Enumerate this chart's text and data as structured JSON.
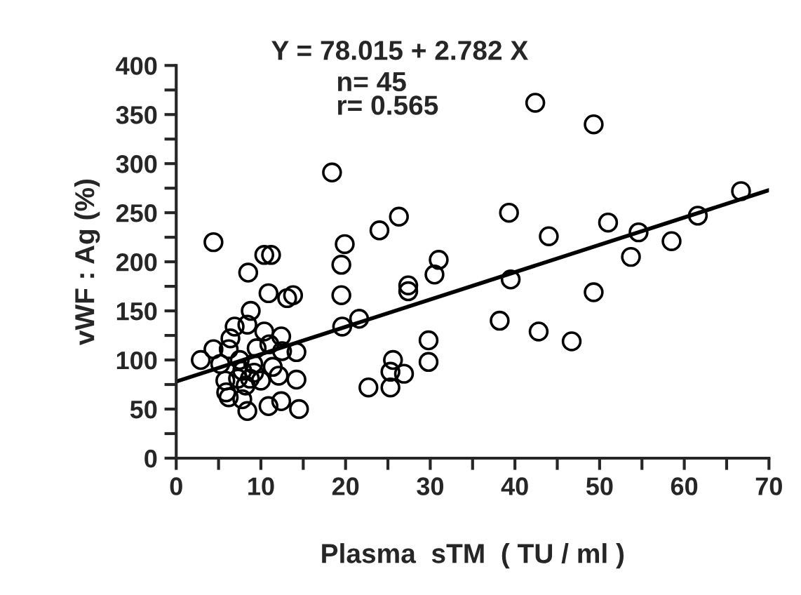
{
  "chart_data": {
    "type": "scatter",
    "title": "Y = 78.015 + 2.782 X",
    "annotations": [
      "n= 45",
      "r= 0.565"
    ],
    "xlabel": "Plasma  sTM  ( TU / ml )",
    "ylabel": "vWF : Ag (%)",
    "xlim": [
      0,
      70
    ],
    "ylim": [
      0,
      400
    ],
    "xticks": [
      0,
      {
        "value": 5,
        "label": null
      },
      10,
      {
        "value": 15,
        "label": null
      },
      20,
      {
        "value": 25,
        "label": null
      },
      30,
      {
        "value": 35,
        "label": null
      },
      40,
      {
        "value": 45,
        "label": null
      },
      50,
      {
        "value": 55,
        "label": null
      },
      60,
      {
        "value": 65,
        "label": null
      },
      70
    ],
    "yticks": [
      0,
      {
        "value": 25,
        "label": null
      },
      50,
      {
        "value": 75,
        "label": null
      },
      100,
      {
        "value": 125,
        "label": null
      },
      150,
      {
        "value": 175,
        "label": null
      },
      200,
      {
        "value": 225,
        "label": null
      },
      250,
      {
        "value": 275,
        "label": null
      },
      300,
      {
        "value": 325,
        "label": null
      },
      350,
      {
        "value": 375,
        "label": null
      },
      400
    ],
    "grid": false,
    "marker": "circle",
    "series": [
      {
        "color": "#000000",
        "x": [
          42.4,
          49.3,
          18.4,
          66.7,
          39.3,
          26.3,
          24.0,
          51.0,
          61.6,
          44.0,
          54.6,
          58.5,
          53.7,
          19.9,
          19.5,
          19.5,
          19.6,
          21.6,
          31.0,
          30.5,
          27.4,
          27.4,
          39.5,
          49.3,
          38.2,
          42.8,
          46.7,
          29.8,
          29.8,
          25.6,
          25.3,
          26.9,
          22.7,
          25.3,
          10.4,
          11.2,
          10.9,
          13.1,
          13.8,
          14.5,
          12.4,
          10.9,
          14.2,
          14.2,
          12.4,
          10.4,
          4.4,
          8.5,
          8.8,
          6.9,
          6.4,
          8.4,
          2.9,
          4.4,
          6.2,
          9.5,
          11.0,
          12.5,
          5.2,
          7.5,
          9.1,
          11.4,
          7.8,
          9.2,
          5.8,
          7.3,
          8.7,
          10.0,
          12.1,
          5.9,
          6.2,
          7.8,
          8.4,
          8.2
        ],
        "values": [
          362,
          340,
          291,
          272,
          250,
          246,
          232,
          240,
          247,
          226,
          230,
          221,
          205,
          218,
          197,
          166,
          134,
          142,
          202,
          187,
          176,
          170,
          182,
          169,
          140,
          129,
          119,
          120,
          98,
          100,
          88,
          86,
          72,
          72,
          207,
          207,
          168,
          163,
          166,
          50,
          58,
          53,
          80,
          108,
          124,
          129,
          220,
          189,
          150,
          134,
          122,
          136,
          100,
          111,
          111,
          112,
          116,
          109,
          96,
          100,
          96,
          93,
          89,
          87,
          79,
          81,
          81,
          79,
          84,
          67,
          62,
          60,
          48,
          74
        ]
      },
      {
        "type": "line",
        "color": "#000000",
        "x": [
          0,
          70
        ],
        "values": [
          78,
          273
        ],
        "line_style": "solid",
        "marker": "none"
      }
    ]
  }
}
